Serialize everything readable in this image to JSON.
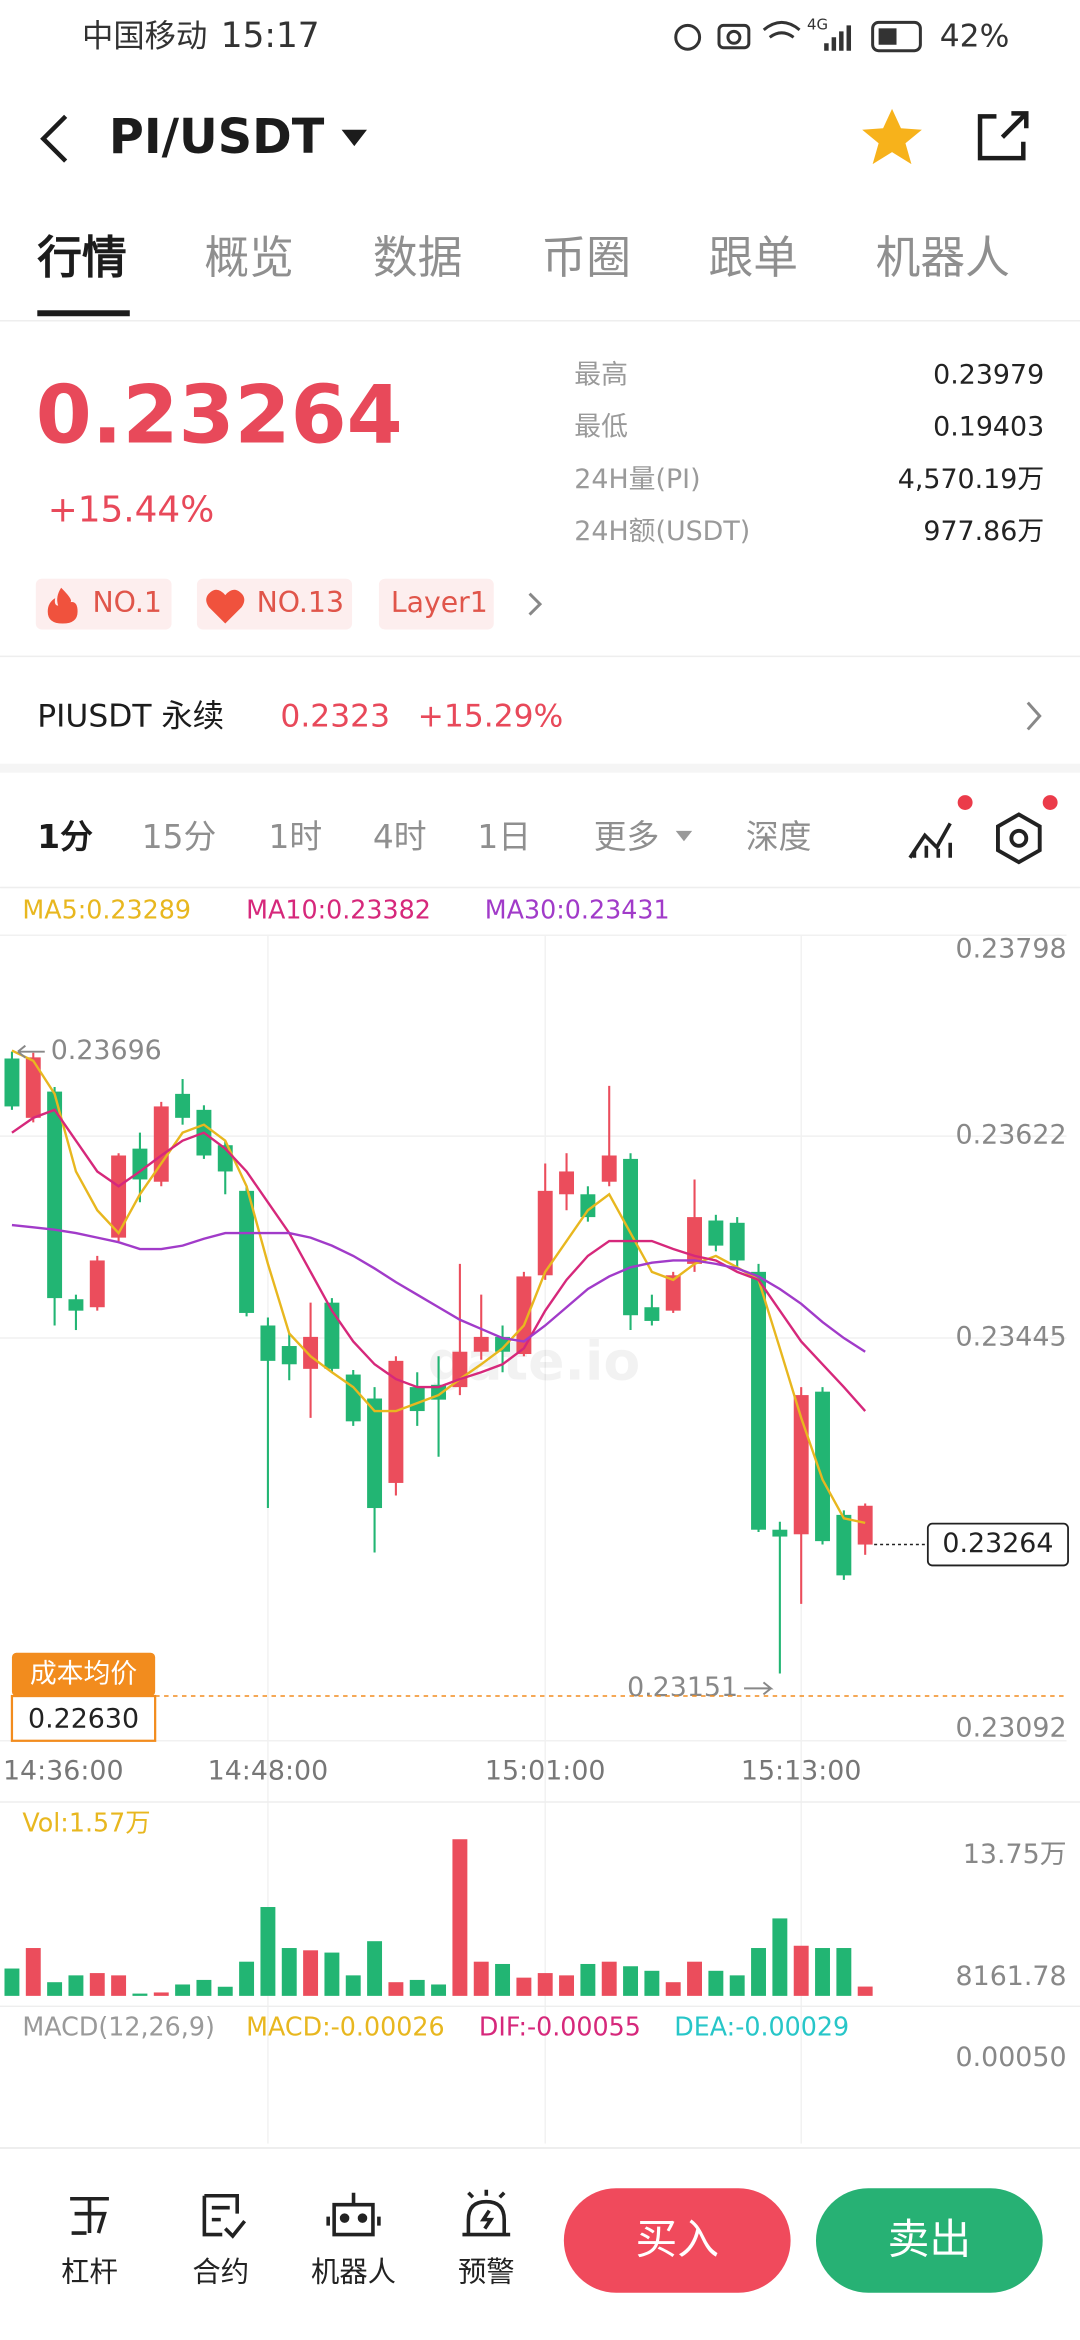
{
  "status_bar": {
    "carrier": "中国移动",
    "time": "15:17",
    "network": "4G",
    "battery": "42%"
  },
  "header": {
    "pair": "PI/USDT"
  },
  "tabs": [
    "行情",
    "概览",
    "数据",
    "币圈",
    "跟单",
    "机器人"
  ],
  "price": {
    "last": "0.23264",
    "change": "+15.44%"
  },
  "stats": [
    {
      "label": "最高",
      "value": "0.23979"
    },
    {
      "label": "最低",
      "value": "0.19403"
    },
    {
      "label": "24H量(PI)",
      "value": "4,570.19万"
    },
    {
      "label": "24H额(USDT)",
      "value": "977.86万"
    }
  ],
  "tags": [
    "NO.1",
    "NO.13",
    "Layer1"
  ],
  "perpetual": {
    "name": "PIUSDT 永续",
    "price": "0.2323",
    "change": "+15.29%"
  },
  "intervals": [
    "1分",
    "15分",
    "1时",
    "4时",
    "1日",
    "更多",
    "深度"
  ],
  "chart_data": {
    "type": "candlestick",
    "watermark": "gate.io",
    "categories": [
      "14:36:00",
      null,
      null,
      null,
      null,
      null,
      null,
      null,
      null,
      null,
      null,
      null,
      "14:48:00",
      null,
      null,
      null,
      null,
      null,
      null,
      null,
      null,
      null,
      null,
      null,
      null,
      "15:01:00",
      null,
      null,
      null,
      null,
      null,
      null,
      null,
      null,
      null,
      null,
      null,
      "15:13:00",
      null,
      null,
      null
    ],
    "open": [
      0.23648,
      0.23691,
      0.2348,
      0.23469,
      0.23513,
      0.23605,
      0.23584,
      0.23648,
      0.23638,
      0.23605,
      0.23591,
      0.23467,
      0.23425,
      0.23422,
      0.23446,
      0.23418,
      0.23372,
      0.23296,
      0.23425,
      0.23381,
      0.23391,
      0.23433,
      0.23446,
      0.23433,
      0.23499,
      0.23574,
      0.23591,
      0.23551,
      0.23605,
      0.23465,
      0.2346,
      0.235,
      0.23551,
      0.23526,
      0.23513,
      0.23277,
      0.23271,
      0.23395,
      0.23267,
      0.23237,
      0.23298
    ],
    "high": [
      0.23696,
      0.23695,
      0.23665,
      0.23483,
      0.23517,
      0.23607,
      0.23625,
      0.23652,
      0.23672,
      0.23649,
      0.23618,
      0.23578,
      0.23463,
      0.23449,
      0.23476,
      0.2348,
      0.23417,
      0.23402,
      0.23429,
      0.23415,
      0.23429,
      0.2351,
      0.23483,
      0.23456,
      0.23503,
      0.23598,
      0.23607,
      0.23578,
      0.23666,
      0.23607,
      0.23483,
      0.23503,
      0.23584,
      0.23553,
      0.23551,
      0.2351,
      0.23284,
      0.23402,
      0.23402,
      0.23294,
      0.233
    ],
    "low": [
      0.23645,
      0.23634,
      0.23456,
      0.23452,
      0.23469,
      0.2353,
      0.23564,
      0.23578,
      0.23632,
      0.23602,
      0.23571,
      0.23464,
      0.23296,
      0.23408,
      0.23375,
      0.23415,
      0.23368,
      0.23257,
      0.23307,
      0.23368,
      0.23341,
      0.23395,
      0.23426,
      0.23415,
      0.23429,
      0.23496,
      0.23557,
      0.23547,
      0.23578,
      0.23452,
      0.23456,
      0.23467,
      0.23503,
      0.23521,
      0.23507,
      0.23275,
      0.23151,
      0.23212,
      0.23264,
      0.23233,
      0.23255
    ],
    "close": [
      0.2369,
      0.23638,
      0.23661,
      0.23479,
      0.23472,
      0.23533,
      0.23611,
      0.23582,
      0.23659,
      0.23645,
      0.23614,
      0.23574,
      0.23456,
      0.23438,
      0.23418,
      0.23476,
      0.23413,
      0.23392,
      0.23318,
      0.23402,
      0.23404,
      0.23402,
      0.23433,
      0.23446,
      0.23431,
      0.235,
      0.23571,
      0.23571,
      0.23582,
      0.23602,
      0.23472,
      0.23469,
      0.2351,
      0.23548,
      0.23546,
      0.23503,
      0.23277,
      0.23273,
      0.23398,
      0.2329,
      0.23264
    ],
    "up_color": "#22b573",
    "down_color": "#eb4d5c",
    "series": [
      {
        "name": "MA5:0.23289",
        "color": "#e8b71f",
        "values": [
          0.23697,
          0.23688,
          0.23659,
          0.23591,
          0.23557,
          0.23537,
          0.23571,
          0.23598,
          0.23625,
          0.23632,
          0.23618,
          0.23578,
          0.2351,
          0.23449,
          0.23429,
          0.23415,
          0.23402,
          0.23381,
          0.23381,
          0.23388,
          0.23395,
          0.23409,
          0.23422,
          0.23436,
          0.23456,
          0.23503,
          0.2353,
          0.23557,
          0.23571,
          0.23537,
          0.23503,
          0.23496,
          0.2351,
          0.23517,
          0.23507,
          0.23496,
          0.23436,
          0.23375,
          0.23321,
          0.23287,
          0.23283
        ]
      },
      {
        "name": "MA10:0.23382",
        "color": "#d6287b",
        "values": [
          0.23625,
          0.23638,
          0.23645,
          0.23618,
          0.23591,
          0.23578,
          0.23591,
          0.23605,
          0.23618,
          0.23625,
          0.23611,
          0.23591,
          0.23564,
          0.23537,
          0.23503,
          0.23469,
          0.23442,
          0.23422,
          0.23409,
          0.23402,
          0.23402,
          0.23409,
          0.23415,
          0.23422,
          0.23436,
          0.23469,
          0.23496,
          0.23517,
          0.2353,
          0.2353,
          0.2353,
          0.23523,
          0.23517,
          0.23513,
          0.23503,
          0.23496,
          0.23469,
          0.23442,
          0.23422,
          0.23402,
          0.23381
        ]
      },
      {
        "name": "MA30:0.23431",
        "color": "#a13bc9",
        "values": [
          0.23544,
          0.23542,
          0.2354,
          0.23537,
          0.23533,
          0.23529,
          0.23523,
          0.23523,
          0.23526,
          0.23532,
          0.23537,
          0.23537,
          0.23537,
          0.23537,
          0.23533,
          0.23526,
          0.23517,
          0.23506,
          0.23494,
          0.23483,
          0.23472,
          0.23461,
          0.23453,
          0.23445,
          0.23442,
          0.23456,
          0.23472,
          0.23488,
          0.23499,
          0.23507,
          0.23511,
          0.23513,
          0.23513,
          0.2351,
          0.23506,
          0.23499,
          0.23488,
          0.23475,
          0.23459,
          0.23445,
          0.23433
        ]
      }
    ],
    "ylim": [
      0.23092,
      0.23798
    ],
    "yticks": [
      0.23798,
      0.23622,
      0.23445,
      0.23092
    ],
    "last_price": 0.23264,
    "max_label": 0.23696,
    "min_label": 0.23151,
    "cost_label": "成本均价",
    "cost_price": "0.22630",
    "volume": {
      "legend": "Vol:1.57万",
      "values": [
        24000,
        42000,
        12000,
        18000,
        20000,
        18000,
        2000,
        3000,
        10000,
        14000,
        8000,
        30000,
        78000,
        42000,
        40000,
        38000,
        18000,
        48000,
        12000,
        14000,
        10000,
        137500,
        30000,
        28000,
        16000,
        20000,
        18000,
        28000,
        30000,
        26000,
        22000,
        12000,
        30000,
        22000,
        18000,
        42000,
        68000,
        44000,
        42000,
        42000,
        8161.78
      ],
      "ylim": [
        0,
        137500
      ],
      "yticks": [
        {
          "value": 137500,
          "label": "13.75万"
        },
        {
          "value": 8161.78,
          "label": "8161.78"
        }
      ]
    },
    "macd": {
      "legend": [
        {
          "text": "MACD(12,26,9)",
          "color": "#9a9a9a"
        },
        {
          "text": "MACD:-0.00026",
          "color": "#e8b71f"
        },
        {
          "text": "DIF:-0.00055",
          "color": "#d6287b"
        },
        {
          "text": "DEA:-0.00029",
          "color": "#27c6c8"
        }
      ],
      "axis_label": "0.00050"
    }
  },
  "bottom_nav": [
    "杠杆",
    "合约",
    "机器人",
    "预警"
  ],
  "buttons": {
    "buy": "买入",
    "sell": "卖出"
  }
}
